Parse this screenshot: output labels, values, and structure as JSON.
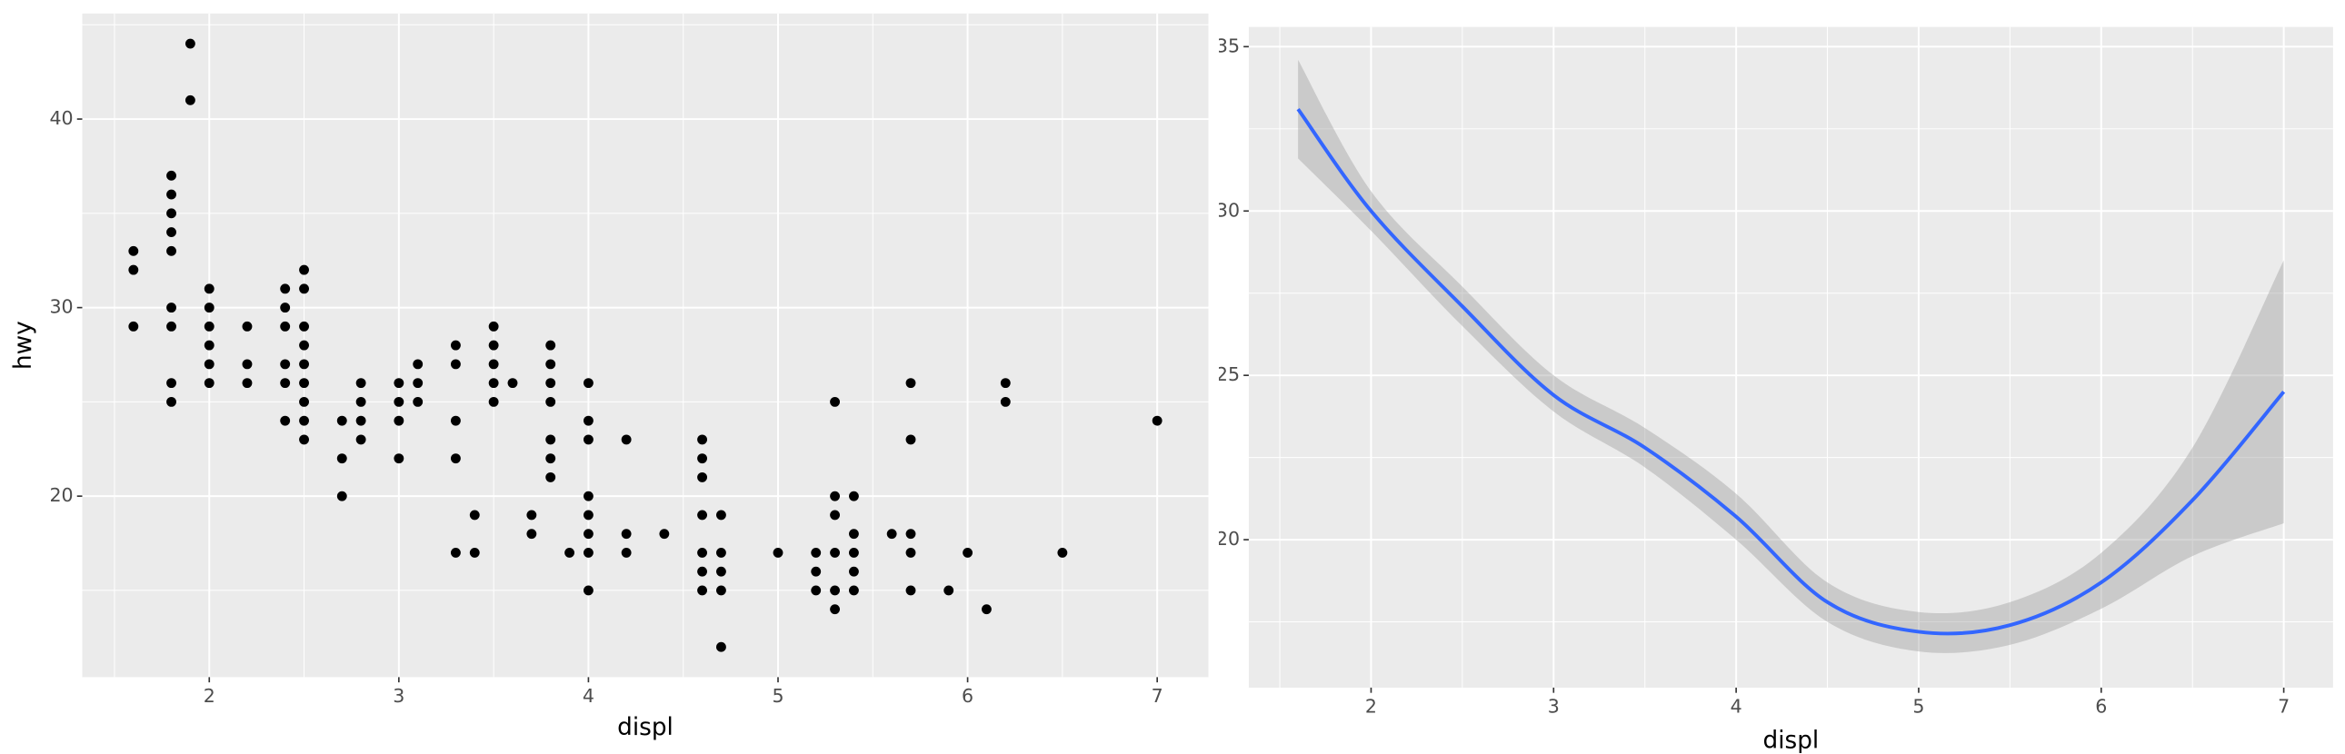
{
  "chart_data": [
    {
      "type": "scatter",
      "xlabel": "displ",
      "ylabel": "hwy",
      "color": "#000000",
      "x": [
        1.6,
        1.6,
        1.6,
        1.8,
        1.8,
        1.8,
        1.8,
        1.8,
        1.8,
        1.8,
        1.8,
        1.8,
        1.9,
        1.9,
        2.0,
        2.0,
        2.0,
        2.0,
        2.0,
        2.0,
        2.2,
        2.2,
        2.2,
        2.4,
        2.4,
        2.4,
        2.4,
        2.4,
        2.4,
        2.5,
        2.5,
        2.5,
        2.5,
        2.5,
        2.5,
        2.5,
        2.5,
        2.5,
        2.7,
        2.7,
        2.7,
        2.8,
        2.8,
        2.8,
        2.8,
        3.0,
        3.0,
        3.0,
        3.0,
        3.1,
        3.1,
        3.1,
        3.3,
        3.3,
        3.3,
        3.3,
        3.3,
        3.4,
        3.4,
        3.5,
        3.5,
        3.5,
        3.5,
        3.5,
        3.6,
        3.7,
        3.7,
        3.8,
        3.8,
        3.8,
        3.8,
        3.8,
        3.8,
        3.8,
        3.9,
        4.0,
        4.0,
        4.0,
        4.0,
        4.0,
        4.0,
        4.0,
        4.0,
        4.2,
        4.2,
        4.2,
        4.4,
        4.6,
        4.6,
        4.6,
        4.6,
        4.6,
        4.6,
        4.6,
        4.7,
        4.7,
        4.7,
        4.7,
        4.7,
        5.0,
        5.2,
        5.2,
        5.2,
        5.3,
        5.3,
        5.3,
        5.3,
        5.3,
        5.3,
        5.4,
        5.4,
        5.4,
        5.4,
        5.4,
        5.6,
        5.7,
        5.7,
        5.7,
        5.7,
        5.7,
        5.9,
        6.0,
        6.1,
        6.2,
        6.2,
        6.5,
        7.0
      ],
      "y": [
        33,
        32,
        29,
        37,
        36,
        35,
        34,
        33,
        30,
        29,
        26,
        25,
        44,
        41,
        31,
        30,
        29,
        28,
        27,
        26,
        29,
        27,
        26,
        31,
        30,
        29,
        27,
        26,
        24,
        32,
        31,
        29,
        28,
        27,
        26,
        25,
        24,
        23,
        24,
        22,
        20,
        26,
        25,
        24,
        23,
        26,
        25,
        24,
        22,
        27,
        26,
        25,
        28,
        27,
        24,
        22,
        17,
        19,
        17,
        29,
        28,
        27,
        26,
        25,
        26,
        19,
        18,
        28,
        27,
        26,
        25,
        23,
        22,
        21,
        17,
        26,
        24,
        23,
        20,
        19,
        18,
        17,
        15,
        23,
        18,
        17,
        18,
        23,
        22,
        21,
        19,
        17,
        16,
        15,
        19,
        17,
        16,
        15,
        12,
        17,
        17,
        16,
        15,
        25,
        20,
        19,
        17,
        15,
        14,
        20,
        18,
        17,
        16,
        15,
        18,
        26,
        23,
        18,
        17,
        15,
        15,
        17,
        14,
        26,
        25,
        17,
        24
      ],
      "xlim": [
        1.33,
        7.27
      ],
      "ylim": [
        10.4,
        45.6
      ],
      "xticks": [
        2,
        3,
        4,
        5,
        6,
        7
      ],
      "yticks": [
        20,
        30,
        40
      ],
      "grid": true
    },
    {
      "type": "line",
      "xlabel": "displ",
      "color": "#3366ff",
      "band_color": "#999999",
      "x": [
        1.6,
        2,
        2.5,
        3,
        3.5,
        4,
        4.5,
        5,
        5.5,
        6,
        6.5,
        7
      ],
      "values": [
        33.1,
        30.0,
        27.1,
        24.4,
        22.8,
        20.7,
        18.1,
        17.2,
        17.4,
        18.7,
        21.2,
        24.5
      ],
      "lower": [
        31.6,
        29.4,
        26.5,
        23.9,
        22.2,
        20.0,
        17.5,
        16.6,
        16.8,
        17.9,
        19.5,
        20.5
      ],
      "upper": [
        34.6,
        30.6,
        27.7,
        25.0,
        23.4,
        21.4,
        18.7,
        17.8,
        18.1,
        19.6,
        22.8,
        28.5
      ],
      "xlim": [
        1.33,
        7.27
      ],
      "ylim": [
        15.5,
        35.6
      ],
      "xticks": [
        2,
        3,
        4,
        5,
        6,
        7
      ],
      "yticks": [
        20,
        25,
        30,
        35
      ],
      "grid": true
    }
  ]
}
